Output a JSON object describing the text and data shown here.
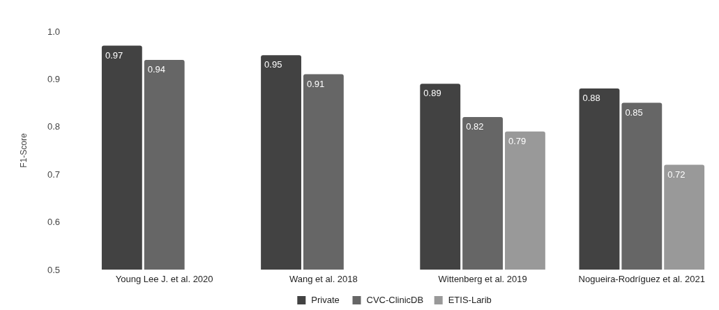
{
  "chart_data": {
    "type": "bar",
    "ylabel": "F1-Score",
    "categories": [
      "Young Lee J. et al. 2020",
      "Wang et al. 2018",
      "Wittenberg et al. 2019",
      "Nogueira-Rodríguez et al. 2021"
    ],
    "series": [
      {
        "name": "Private",
        "color": "#424242",
        "values": [
          0.97,
          0.95,
          0.89,
          0.88
        ]
      },
      {
        "name": "CVC-ClinicDB",
        "color": "#666666",
        "values": [
          0.94,
          0.91,
          0.82,
          0.85
        ]
      },
      {
        "name": "ETIS-Larib",
        "color": "#999999",
        "values": [
          null,
          null,
          0.79,
          0.72
        ]
      }
    ],
    "ylim": [
      0.5,
      1.0
    ],
    "yticks": [
      {
        "value": 0.5,
        "label": "0.5"
      },
      {
        "value": 0.6,
        "label": "0.6"
      },
      {
        "value": 0.7,
        "label": "0.7"
      },
      {
        "value": 0.8,
        "label": "0.8"
      },
      {
        "value": 0.9,
        "label": "0.9"
      },
      {
        "value": 1.0,
        "label": "1.0"
      }
    ],
    "grid": false,
    "data_labels": true,
    "legend": "bottom"
  }
}
